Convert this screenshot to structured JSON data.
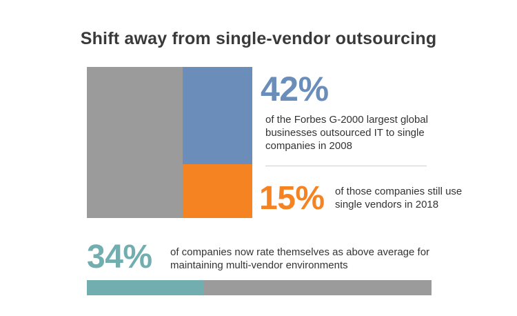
{
  "title": "Shift away from single-vendor outsourcing",
  "colors": {
    "gray": "#9b9b9b",
    "blue": "#6a8dba",
    "orange": "#f58321",
    "teal": "#72aeb0"
  },
  "stats": {
    "s1": {
      "value": "42%",
      "text": "of the Forbes G-2000 largest global businesses outsourced IT to single companies in 2008"
    },
    "s2": {
      "value": "15%",
      "text": "of those companies still use single vendors in 2018"
    },
    "s3": {
      "value": "34%",
      "text": "of companies now rate themselves as above average for maintaining multi-vendor environments"
    }
  },
  "chart_data": [
    {
      "type": "bar",
      "title": "",
      "stacked": true,
      "total": 100,
      "segments": [
        {
          "name": "",
          "value": 58,
          "color": "#9b9b9b"
        },
        {
          "name": "",
          "value": 42,
          "color": "#6a8dba",
          "inner": {
            "value": 15,
            "color": "#f58321"
          }
        }
      ]
    },
    {
      "type": "bar",
      "title": "",
      "orientation": "horizontal",
      "total": 100,
      "values": [
        34,
        66
      ],
      "colors": [
        "#72aeb0",
        "#9b9b9b"
      ]
    }
  ]
}
